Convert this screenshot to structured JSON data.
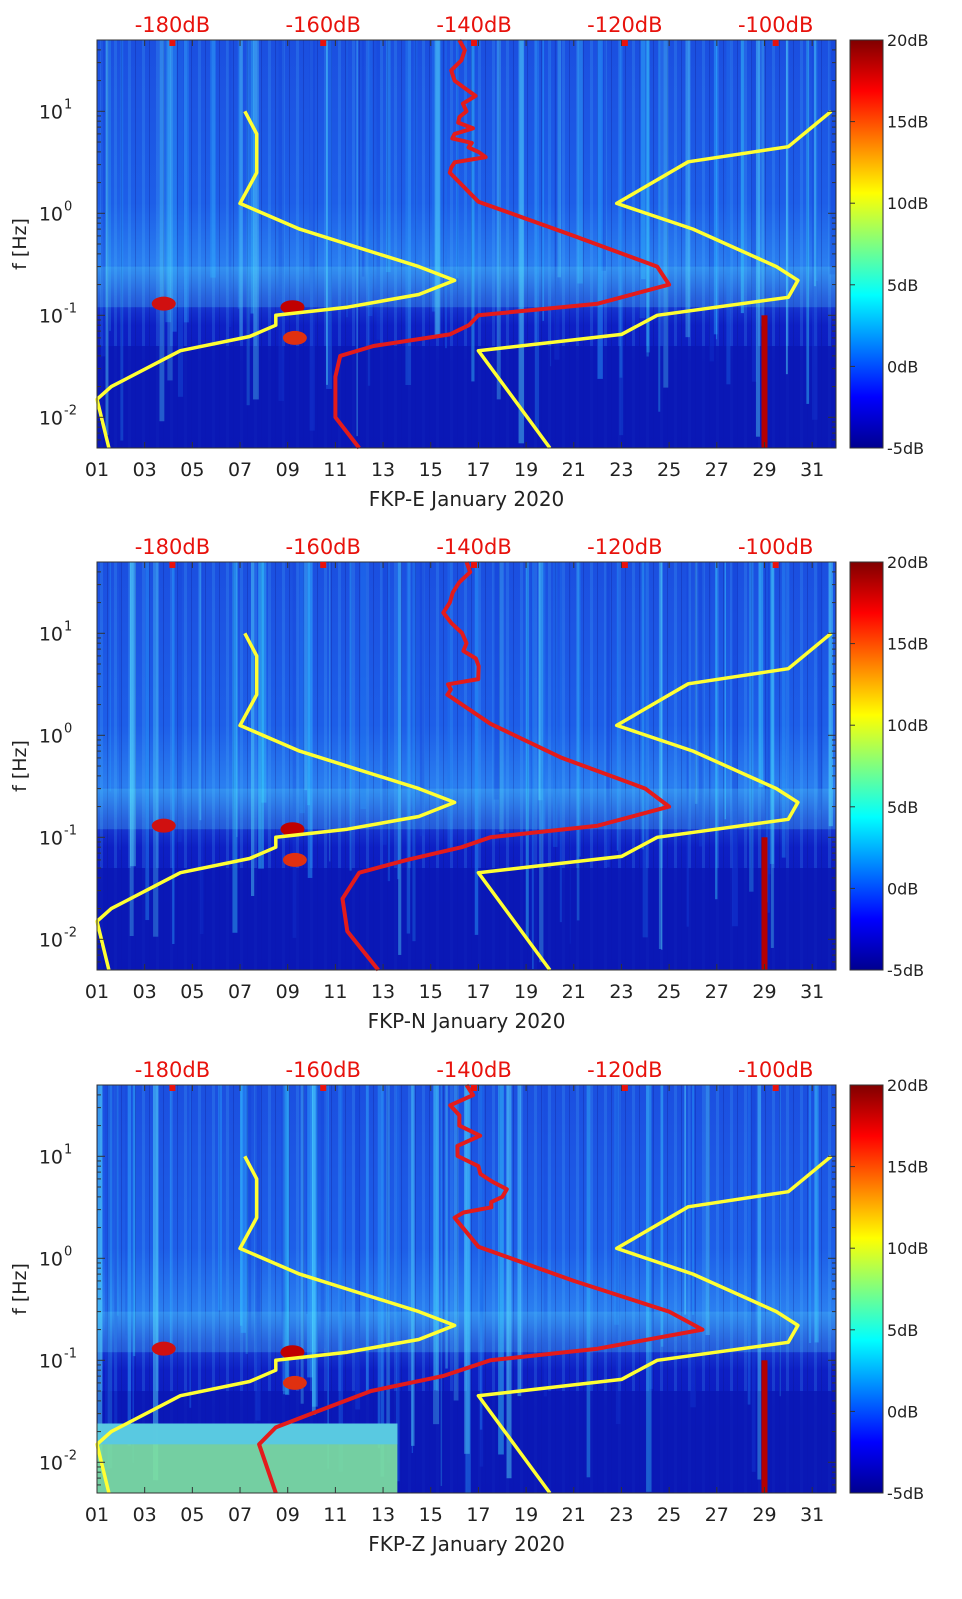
{
  "figure": {
    "panels": [
      {
        "xlabel": "FKP-E January 2020",
        "ylabel": "f [Hz]",
        "top_axis_ticks": [
          "-180dB",
          "-160dB",
          "-140dB",
          "-120dB",
          "-100dB"
        ],
        "x_ticks": [
          "01",
          "03",
          "05",
          "07",
          "09",
          "11",
          "13",
          "15",
          "17",
          "19",
          "21",
          "23",
          "25",
          "27",
          "29",
          "31"
        ],
        "y_ticks": [
          {
            "base": "10",
            "exp": "1",
            "value": 10
          },
          {
            "base": "10",
            "exp": "0",
            "value": 1
          },
          {
            "base": "10",
            "exp": "-1",
            "value": 0.1
          },
          {
            "base": "10",
            "exp": "-2",
            "value": 0.01
          }
        ],
        "colorbar": {
          "ticks": [
            "20dB",
            "15dB",
            "10dB",
            "5dB",
            "0dB",
            "-5dB"
          ],
          "range": [
            -5,
            20
          ]
        }
      },
      {
        "xlabel": "FKP-N January 2020",
        "ylabel": "f [Hz]",
        "top_axis_ticks": [
          "-180dB",
          "-160dB",
          "-140dB",
          "-120dB",
          "-100dB"
        ],
        "x_ticks": [
          "01",
          "03",
          "05",
          "07",
          "09",
          "11",
          "13",
          "15",
          "17",
          "19",
          "21",
          "23",
          "25",
          "27",
          "29",
          "31"
        ],
        "y_ticks": [
          {
            "base": "10",
            "exp": "1",
            "value": 10
          },
          {
            "base": "10",
            "exp": "0",
            "value": 1
          },
          {
            "base": "10",
            "exp": "-1",
            "value": 0.1
          },
          {
            "base": "10",
            "exp": "-2",
            "value": 0.01
          }
        ],
        "colorbar": {
          "ticks": [
            "20dB",
            "15dB",
            "10dB",
            "5dB",
            "0dB",
            "-5dB"
          ],
          "range": [
            -5,
            20
          ]
        }
      },
      {
        "xlabel": "FKP-Z January 2020",
        "ylabel": "f [Hz]",
        "top_axis_ticks": [
          "-180dB",
          "-160dB",
          "-140dB",
          "-120dB",
          "-100dB"
        ],
        "x_ticks": [
          "01",
          "03",
          "05",
          "07",
          "09",
          "11",
          "13",
          "15",
          "17",
          "19",
          "21",
          "23",
          "25",
          "27",
          "29",
          "31"
        ],
        "y_ticks": [
          {
            "base": "10",
            "exp": "1",
            "value": 10
          },
          {
            "base": "10",
            "exp": "0",
            "value": 1
          },
          {
            "base": "10",
            "exp": "-1",
            "value": 0.1
          },
          {
            "base": "10",
            "exp": "-2",
            "value": 0.01
          }
        ],
        "colorbar": {
          "ticks": [
            "20dB",
            "15dB",
            "10dB",
            "5dB",
            "0dB",
            "-5dB"
          ],
          "range": [
            -5,
            20
          ]
        }
      }
    ]
  },
  "chart_data": [
    {
      "type": "heatmap",
      "title": "FKP-E January 2020",
      "xlabel": "FKP-E January 2020",
      "ylabel": "f [Hz]",
      "x_range_day": [
        1,
        32
      ],
      "y_range_hz": [
        0.005,
        50
      ],
      "y_scale": "log",
      "color_range_db": [
        -5,
        20
      ],
      "top_axis_range_db": [
        -190,
        -92
      ],
      "nlnm_yellow_left": [
        [
          0.005,
          1.5
        ],
        [
          0.015,
          1.0
        ],
        [
          0.02,
          1.6
        ],
        [
          0.045,
          4.5
        ],
        [
          0.062,
          7.4
        ],
        [
          0.08,
          8.5
        ],
        [
          0.1,
          8.5
        ],
        [
          0.12,
          11.5
        ],
        [
          0.16,
          14.5
        ],
        [
          0.22,
          16.0
        ],
        [
          0.3,
          14.5
        ],
        [
          0.7,
          9.5
        ],
        [
          1.25,
          7.0
        ],
        [
          2.5,
          7.7
        ],
        [
          6,
          7.7
        ],
        [
          10,
          7.2
        ]
      ],
      "nhnm_yellow_right": [
        [
          0.005,
          20.0
        ],
        [
          0.045,
          17.0
        ],
        [
          0.065,
          23.0
        ],
        [
          0.1,
          24.5
        ],
        [
          0.15,
          30.0
        ],
        [
          0.22,
          30.4
        ],
        [
          0.3,
          29.5
        ],
        [
          0.7,
          26.0
        ],
        [
          1.25,
          22.8
        ],
        [
          3.2,
          25.8
        ],
        [
          4.5,
          30.0
        ],
        [
          10,
          31.8
        ]
      ],
      "median_psd_red": [
        [
          0.005,
          12.0
        ],
        [
          0.01,
          11.0
        ],
        [
          0.025,
          11.0
        ],
        [
          0.04,
          11.2
        ],
        [
          0.05,
          12.6
        ],
        [
          0.065,
          15.8
        ],
        [
          0.08,
          16.6
        ],
        [
          0.1,
          17.0
        ],
        [
          0.13,
          22.0
        ],
        [
          0.2,
          25.0
        ],
        [
          0.3,
          24.5
        ],
        [
          0.6,
          21.0
        ],
        [
          1.3,
          17.0
        ],
        [
          2.5,
          15.8
        ],
        [
          4,
          17.0
        ],
        [
          6,
          16.0
        ],
        [
          10,
          16.5
        ],
        [
          20,
          16.0
        ],
        [
          50,
          16.2
        ]
      ]
    },
    {
      "type": "heatmap",
      "title": "FKP-N January 2020",
      "xlabel": "FKP-N January 2020",
      "ylabel": "f [Hz]",
      "x_range_day": [
        1,
        32
      ],
      "y_range_hz": [
        0.005,
        50
      ],
      "y_scale": "log",
      "color_range_db": [
        -5,
        20
      ],
      "top_axis_range_db": [
        -190,
        -92
      ],
      "nlnm_yellow_left": [
        [
          0.005,
          1.5
        ],
        [
          0.015,
          1.0
        ],
        [
          0.02,
          1.6
        ],
        [
          0.045,
          4.5
        ],
        [
          0.062,
          7.4
        ],
        [
          0.08,
          8.5
        ],
        [
          0.1,
          8.5
        ],
        [
          0.12,
          11.5
        ],
        [
          0.16,
          14.5
        ],
        [
          0.22,
          16.0
        ],
        [
          0.3,
          14.5
        ],
        [
          0.7,
          9.5
        ],
        [
          1.25,
          7.0
        ],
        [
          2.5,
          7.7
        ],
        [
          6,
          7.7
        ],
        [
          10,
          7.2
        ]
      ],
      "nhnm_yellow_right": [
        [
          0.005,
          20.0
        ],
        [
          0.045,
          17.0
        ],
        [
          0.065,
          23.0
        ],
        [
          0.1,
          24.5
        ],
        [
          0.15,
          30.0
        ],
        [
          0.22,
          30.4
        ],
        [
          0.3,
          29.5
        ],
        [
          0.7,
          26.0
        ],
        [
          1.25,
          22.8
        ],
        [
          3.2,
          25.8
        ],
        [
          4.5,
          30.0
        ],
        [
          10,
          31.8
        ]
      ],
      "median_psd_red": [
        [
          0.005,
          12.8
        ],
        [
          0.012,
          11.5
        ],
        [
          0.025,
          11.3
        ],
        [
          0.045,
          12.0
        ],
        [
          0.06,
          14.0
        ],
        [
          0.08,
          16.3
        ],
        [
          0.1,
          17.5
        ],
        [
          0.13,
          22.0
        ],
        [
          0.2,
          25.0
        ],
        [
          0.3,
          24.0
        ],
        [
          0.6,
          20.5
        ],
        [
          1.3,
          17.5
        ],
        [
          2.5,
          15.7
        ],
        [
          4,
          17.0
        ],
        [
          8,
          16.5
        ],
        [
          20,
          15.8
        ],
        [
          50,
          16.5
        ]
      ]
    },
    {
      "type": "heatmap",
      "title": "FKP-Z January 2020",
      "xlabel": "FKP-Z January 2020",
      "ylabel": "f [Hz]",
      "x_range_day": [
        1,
        32
      ],
      "y_range_hz": [
        0.005,
        50
      ],
      "y_scale": "log",
      "color_range_db": [
        -5,
        20
      ],
      "top_axis_range_db": [
        -190,
        -92
      ],
      "nlnm_yellow_left": [
        [
          0.005,
          1.5
        ],
        [
          0.015,
          1.0
        ],
        [
          0.02,
          1.6
        ],
        [
          0.045,
          4.5
        ],
        [
          0.062,
          7.4
        ],
        [
          0.08,
          8.5
        ],
        [
          0.1,
          8.5
        ],
        [
          0.12,
          11.5
        ],
        [
          0.16,
          14.5
        ],
        [
          0.22,
          16.0
        ],
        [
          0.3,
          14.5
        ],
        [
          0.7,
          9.5
        ],
        [
          1.25,
          7.0
        ],
        [
          2.5,
          7.7
        ],
        [
          6,
          7.7
        ],
        [
          10,
          7.2
        ]
      ],
      "nhnm_yellow_right": [
        [
          0.005,
          20.0
        ],
        [
          0.045,
          17.0
        ],
        [
          0.065,
          23.0
        ],
        [
          0.1,
          24.5
        ],
        [
          0.15,
          30.0
        ],
        [
          0.22,
          30.4
        ],
        [
          0.3,
          29.5
        ],
        [
          0.7,
          26.0
        ],
        [
          1.25,
          22.8
        ],
        [
          3.2,
          25.8
        ],
        [
          4.5,
          30.0
        ],
        [
          10,
          31.8
        ]
      ],
      "median_psd_red": [
        [
          0.005,
          8.5
        ],
        [
          0.015,
          7.8
        ],
        [
          0.022,
          8.5
        ],
        [
          0.03,
          10.0
        ],
        [
          0.05,
          12.5
        ],
        [
          0.07,
          15.5
        ],
        [
          0.1,
          17.5
        ],
        [
          0.13,
          22.0
        ],
        [
          0.2,
          26.4
        ],
        [
          0.3,
          25.0
        ],
        [
          0.6,
          21.0
        ],
        [
          1.3,
          17.0
        ],
        [
          2.5,
          16.0
        ],
        [
          4,
          18.0
        ],
        [
          8,
          17.0
        ],
        [
          20,
          16.2
        ],
        [
          50,
          16.5
        ]
      ]
    }
  ]
}
